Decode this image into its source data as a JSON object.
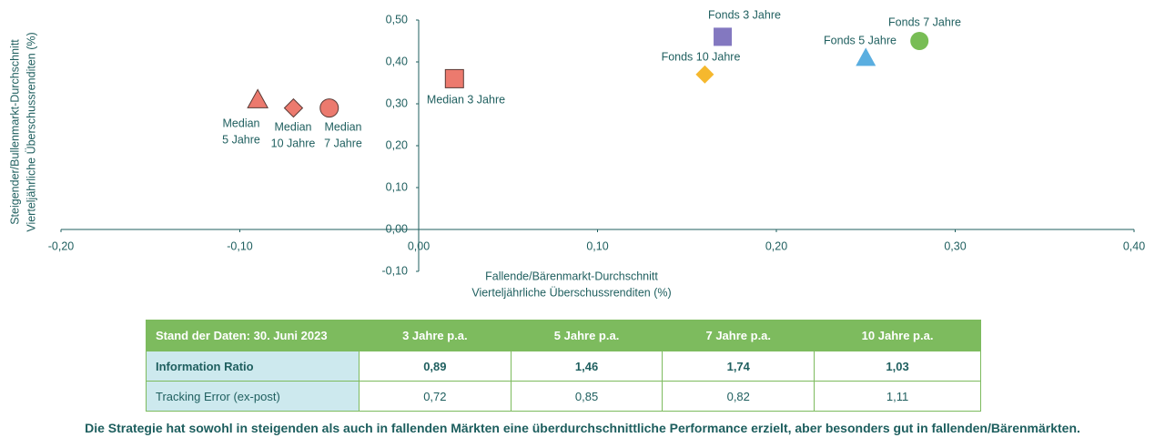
{
  "chart_data": {
    "type": "scatter",
    "xlabel": [
      "Fallende/Bärenmarkt-Durchschnitt",
      "Vierteljährliche Überschussrenditen (%)"
    ],
    "ylabel": [
      "Steigender/Bullenmarkt-Durchschnitt",
      "Vierteljährliche Überschussrenditen (%)"
    ],
    "xlim": [
      -0.2,
      0.4
    ],
    "xticks": [
      {
        "value": -0.2,
        "label": "-0,20"
      },
      {
        "value": -0.1,
        "label": "-0,10"
      },
      {
        "value": 0,
        "label": "0,00"
      },
      {
        "value": 0.1,
        "label": "0,10"
      },
      {
        "value": 0.2,
        "label": "0,20"
      },
      {
        "value": 0.3,
        "label": "0,30"
      },
      {
        "value": 0.4,
        "label": "0,40"
      }
    ],
    "ylim": [
      -0.1,
      0.5
    ],
    "yticks": [
      {
        "value": -0.1,
        "label": "-0,10"
      },
      {
        "value": 0,
        "label": "0,00"
      },
      {
        "value": 0.1,
        "label": "0,10"
      },
      {
        "value": 0.2,
        "label": "0,20"
      },
      {
        "value": 0.3,
        "label": "0,30"
      },
      {
        "value": 0.4,
        "label": "0,40"
      },
      {
        "value": 0.5,
        "label": "0,50"
      }
    ],
    "points": [
      {
        "label": [
          "Median",
          "5 Jahre"
        ],
        "x": -0.09,
        "y": 0.31,
        "marker": "triangle",
        "color": "#ec7a6e"
      },
      {
        "label": [
          "Median",
          "10 Jahre"
        ],
        "x": -0.07,
        "y": 0.29,
        "marker": "diamond",
        "color": "#ec7a6e"
      },
      {
        "label": [
          "Median",
          "7 Jahre"
        ],
        "x": -0.05,
        "y": 0.29,
        "marker": "circle",
        "color": "#ec7a6e"
      },
      {
        "label": [
          "Median 3 Jahre"
        ],
        "x": 0.02,
        "y": 0.36,
        "marker": "square",
        "color": "#ec7a6e"
      },
      {
        "label": [
          "Fonds 3 Jahre"
        ],
        "x": 0.17,
        "y": 0.46,
        "marker": "square",
        "color": "#8378c0"
      },
      {
        "label": [
          "Fonds 10 Jahre"
        ],
        "x": 0.16,
        "y": 0.37,
        "marker": "diamond",
        "color": "#f5b82e"
      },
      {
        "label": [
          "Fonds 5 Jahre"
        ],
        "x": 0.25,
        "y": 0.41,
        "marker": "triangle",
        "color": "#5aaee0"
      },
      {
        "label": [
          "Fonds 7 Jahre"
        ],
        "x": 0.28,
        "y": 0.45,
        "marker": "circle",
        "color": "#78bd55"
      }
    ]
  },
  "table": {
    "header": [
      "Stand der Daten: 30. Juni 2023",
      "3 Jahre p.a.",
      "5 Jahre p.a.",
      "7 Jahre p.a.",
      "10 Jahre p.a."
    ],
    "rows": [
      [
        "Information Ratio",
        "0,89",
        "1,46",
        "1,74",
        "1,03"
      ],
      [
        "Tracking Error (ex-post)",
        "0,72",
        "0,85",
        "0,82",
        "1,11"
      ]
    ]
  },
  "footnote": "Die Strategie hat sowohl in steigenden als auch in fallenden Märkten eine überdurchschnittliche Performance erzielt, aber besonders gut in fallenden/Bärenmärkten."
}
